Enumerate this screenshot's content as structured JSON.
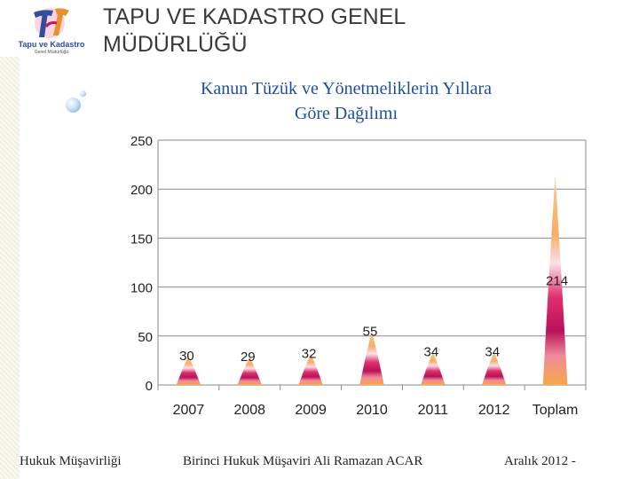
{
  "header": {
    "title_line1": "TAPU VE KADASTRO GENEL",
    "title_line2": "MÜDÜRLÜĞÜ",
    "logo_text": "Tapu ve Kadastro",
    "logo_subtext": "Genel Müdürlüğü"
  },
  "chart_data": {
    "type": "bar",
    "title_line1": "Kanun Tüzük ve Yönetmeliklerin Yıllara",
    "title_line2": "Göre Dağılımı",
    "categories": [
      "2007",
      "2008",
      "2009",
      "2010",
      "2011",
      "2012",
      "Toplam"
    ],
    "values": [
      30,
      29,
      32,
      55,
      34,
      34,
      214
    ],
    "data_labels": [
      "30",
      "29",
      "32",
      "55",
      "34",
      "34",
      "214"
    ],
    "ylim": [
      0,
      250
    ],
    "yticks": [
      "0",
      "50",
      "100",
      "150",
      "200",
      "250"
    ],
    "grid": true
  },
  "footer": {
    "left": "Hukuk Müşavirliği",
    "center": "Birinci Hukuk Müşaviri Ali Ramazan ACAR",
    "right": "Aralık 2012 -"
  }
}
